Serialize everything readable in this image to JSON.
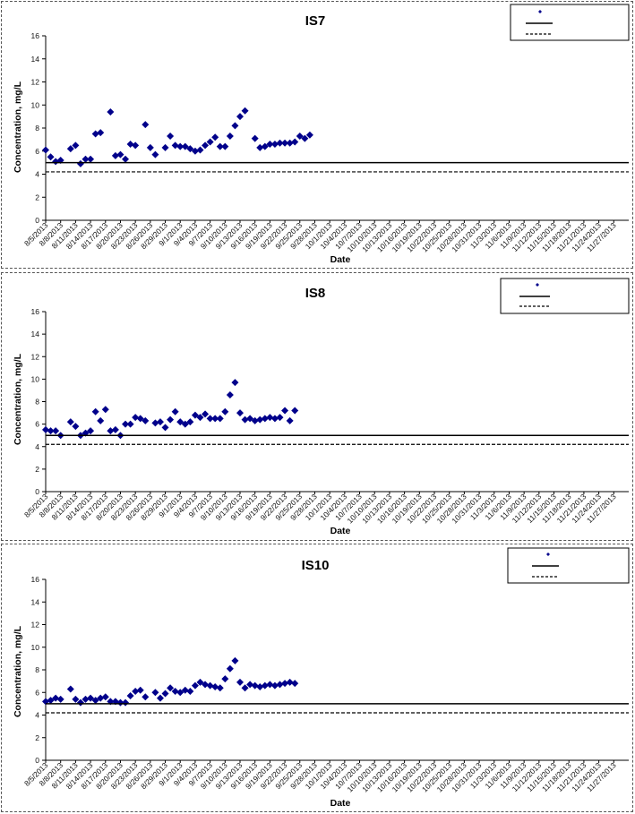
{
  "x_tick_labels": [
    "8/5/2013",
    "8/8/2013",
    "8/11/2013",
    "8/14/2013",
    "8/17/2013",
    "8/20/2013",
    "8/23/2013",
    "8/26/2013",
    "8/29/2013",
    "9/1/2013",
    "9/4/2013",
    "9/7/2013",
    "9/10/2013",
    "9/13/2013",
    "9/16/2013",
    "9/19/2013",
    "9/22/2013",
    "9/25/2013",
    "9/28/2013",
    "10/1/2013",
    "10/4/2013",
    "10/7/2013",
    "10/10/2013",
    "10/13/2013",
    "10/16/2013",
    "10/19/2013",
    "10/22/2013",
    "10/25/2013",
    "10/28/2013",
    "10/31/2013",
    "11/3/2013",
    "11/6/2013",
    "11/9/2013",
    "11/12/2013",
    "11/15/2013",
    "11/18/2013",
    "11/21/2013",
    "11/24/2013",
    "11/27/2013"
  ],
  "chart_data": [
    {
      "type": "scatter",
      "title": "IS7",
      "xlabel": "Date",
      "ylabel": "Concentration, mg/L",
      "ylim": [
        0,
        16
      ],
      "yticks": [
        0,
        2,
        4,
        6,
        8,
        10,
        12,
        14,
        16
      ],
      "grid": false,
      "legend_position": "top-right",
      "marker_color": "#00008B",
      "series": [
        {
          "points": [
            [
              "8/5/2013",
              6.1
            ],
            [
              "8/6/2013",
              5.5
            ],
            [
              "8/7/2013",
              5.1
            ],
            [
              "8/8/2013",
              5.2
            ],
            [
              "8/10/2013",
              6.2
            ],
            [
              "8/11/2013",
              6.5
            ],
            [
              "8/12/2013",
              4.9
            ],
            [
              "8/13/2013",
              5.3
            ],
            [
              "8/14/2013",
              5.3
            ],
            [
              "8/15/2013",
              7.5
            ],
            [
              "8/16/2013",
              7.6
            ],
            [
              "8/18/2013",
              9.4
            ],
            [
              "8/19/2013",
              5.6
            ],
            [
              "8/20/2013",
              5.7
            ],
            [
              "8/21/2013",
              5.3
            ],
            [
              "8/22/2013",
              6.6
            ],
            [
              "8/23/2013",
              6.5
            ],
            [
              "8/25/2013",
              8.3
            ],
            [
              "8/26/2013",
              6.3
            ],
            [
              "8/27/2013",
              5.7
            ],
            [
              "8/29/2013",
              6.3
            ],
            [
              "8/30/2013",
              7.3
            ],
            [
              "8/31/2013",
              6.5
            ],
            [
              "9/1/2013",
              6.4
            ],
            [
              "9/2/2013",
              6.4
            ],
            [
              "9/3/2013",
              6.2
            ],
            [
              "9/4/2013",
              6.0
            ],
            [
              "9/5/2013",
              6.1
            ],
            [
              "9/6/2013",
              6.5
            ],
            [
              "9/7/2013",
              6.8
            ],
            [
              "9/8/2013",
              7.2
            ],
            [
              "9/9/2013",
              6.4
            ],
            [
              "9/10/2013",
              6.4
            ],
            [
              "9/11/2013",
              7.3
            ],
            [
              "9/12/2013",
              8.2
            ],
            [
              "9/13/2013",
              9.0
            ],
            [
              "9/14/2013",
              9.5
            ],
            [
              "9/16/2013",
              7.1
            ],
            [
              "9/17/2013",
              6.3
            ],
            [
              "9/18/2013",
              6.4
            ],
            [
              "9/19/2013",
              6.6
            ],
            [
              "9/20/2013",
              6.6
            ],
            [
              "9/21/2013",
              6.7
            ],
            [
              "9/22/2013",
              6.7
            ],
            [
              "9/23/2013",
              6.7
            ],
            [
              "9/24/2013",
              6.8
            ],
            [
              "9/25/2013",
              7.3
            ],
            [
              "9/26/2013",
              7.1
            ],
            [
              "9/27/2013",
              7.4
            ]
          ]
        },
        {
          "type": "line",
          "y": 5.0,
          "style": "solid",
          "color": "#000000"
        },
        {
          "type": "line",
          "y": 4.2,
          "style": "dashed",
          "color": "#000000"
        }
      ]
    },
    {
      "type": "scatter",
      "title": "IS8",
      "xlabel": "Date",
      "ylabel": "Concentration, mg/L",
      "ylim": [
        0,
        16
      ],
      "yticks": [
        0,
        2,
        4,
        6,
        8,
        10,
        12,
        14,
        16
      ],
      "grid": false,
      "legend_position": "top-right",
      "marker_color": "#00008B",
      "series": [
        {
          "points": [
            [
              "8/5/2013",
              5.5
            ],
            [
              "8/6/2013",
              5.4
            ],
            [
              "8/7/2013",
              5.4
            ],
            [
              "8/8/2013",
              5.0
            ],
            [
              "8/10/2013",
              6.2
            ],
            [
              "8/11/2013",
              5.8
            ],
            [
              "8/12/2013",
              5.0
            ],
            [
              "8/13/2013",
              5.2
            ],
            [
              "8/14/2013",
              5.4
            ],
            [
              "8/15/2013",
              7.1
            ],
            [
              "8/16/2013",
              6.3
            ],
            [
              "8/17/2013",
              7.3
            ],
            [
              "8/18/2013",
              5.4
            ],
            [
              "8/19/2013",
              5.5
            ],
            [
              "8/20/2013",
              5.0
            ],
            [
              "8/21/2013",
              6.0
            ],
            [
              "8/22/2013",
              6.0
            ],
            [
              "8/23/2013",
              6.6
            ],
            [
              "8/24/2013",
              6.5
            ],
            [
              "8/25/2013",
              6.3
            ],
            [
              "8/27/2013",
              6.1
            ],
            [
              "8/28/2013",
              6.2
            ],
            [
              "8/29/2013",
              5.7
            ],
            [
              "8/30/2013",
              6.4
            ],
            [
              "8/31/2013",
              7.1
            ],
            [
              "9/1/2013",
              6.2
            ],
            [
              "9/2/2013",
              6.0
            ],
            [
              "9/3/2013",
              6.2
            ],
            [
              "9/4/2013",
              6.8
            ],
            [
              "9/5/2013",
              6.6
            ],
            [
              "9/6/2013",
              6.9
            ],
            [
              "9/7/2013",
              6.5
            ],
            [
              "9/8/2013",
              6.5
            ],
            [
              "9/9/2013",
              6.5
            ],
            [
              "9/10/2013",
              7.1
            ],
            [
              "9/11/2013",
              8.6
            ],
            [
              "9/12/2013",
              9.7
            ],
            [
              "9/13/2013",
              7.0
            ],
            [
              "9/14/2013",
              6.4
            ],
            [
              "9/15/2013",
              6.5
            ],
            [
              "9/16/2013",
              6.3
            ],
            [
              "9/17/2013",
              6.4
            ],
            [
              "9/18/2013",
              6.5
            ],
            [
              "9/19/2013",
              6.6
            ],
            [
              "9/20/2013",
              6.5
            ],
            [
              "9/21/2013",
              6.6
            ],
            [
              "9/22/2013",
              7.2
            ],
            [
              "9/23/2013",
              6.3
            ],
            [
              "9/24/2013",
              7.2
            ]
          ]
        },
        {
          "type": "line",
          "y": 5.0,
          "style": "solid",
          "color": "#000000"
        },
        {
          "type": "line",
          "y": 4.2,
          "style": "dashed",
          "color": "#000000"
        }
      ]
    },
    {
      "type": "scatter",
      "title": "IS10",
      "xlabel": "Date",
      "ylabel": "Concentration, mg/L",
      "ylim": [
        0,
        16
      ],
      "yticks": [
        0,
        2,
        4,
        6,
        8,
        10,
        12,
        14,
        16
      ],
      "grid": false,
      "legend_position": "top-right",
      "marker_color": "#00008B",
      "series": [
        {
          "points": [
            [
              "8/5/2013",
              5.2
            ],
            [
              "8/6/2013",
              5.3
            ],
            [
              "8/7/2013",
              5.5
            ],
            [
              "8/8/2013",
              5.4
            ],
            [
              "8/10/2013",
              6.3
            ],
            [
              "8/11/2013",
              5.4
            ],
            [
              "8/12/2013",
              5.1
            ],
            [
              "8/13/2013",
              5.4
            ],
            [
              "8/14/2013",
              5.5
            ],
            [
              "8/15/2013",
              5.3
            ],
            [
              "8/16/2013",
              5.5
            ],
            [
              "8/17/2013",
              5.6
            ],
            [
              "8/18/2013",
              5.2
            ],
            [
              "8/19/2013",
              5.2
            ],
            [
              "8/20/2013",
              5.1
            ],
            [
              "8/21/2013",
              5.1
            ],
            [
              "8/22/2013",
              5.7
            ],
            [
              "8/23/2013",
              6.1
            ],
            [
              "8/24/2013",
              6.2
            ],
            [
              "8/25/2013",
              5.6
            ],
            [
              "8/27/2013",
              6.0
            ],
            [
              "8/28/2013",
              5.5
            ],
            [
              "8/29/2013",
              5.9
            ],
            [
              "8/30/2013",
              6.4
            ],
            [
              "8/31/2013",
              6.1
            ],
            [
              "9/1/2013",
              6.0
            ],
            [
              "9/2/2013",
              6.2
            ],
            [
              "9/3/2013",
              6.1
            ],
            [
              "9/4/2013",
              6.6
            ],
            [
              "9/5/2013",
              6.9
            ],
            [
              "9/6/2013",
              6.7
            ],
            [
              "9/7/2013",
              6.6
            ],
            [
              "9/8/2013",
              6.5
            ],
            [
              "9/9/2013",
              6.4
            ],
            [
              "9/10/2013",
              7.2
            ],
            [
              "9/11/2013",
              8.1
            ],
            [
              "9/12/2013",
              8.8
            ],
            [
              "9/13/2013",
              6.9
            ],
            [
              "9/14/2013",
              6.4
            ],
            [
              "9/15/2013",
              6.7
            ],
            [
              "9/16/2013",
              6.6
            ],
            [
              "9/17/2013",
              6.5
            ],
            [
              "9/18/2013",
              6.6
            ],
            [
              "9/19/2013",
              6.7
            ],
            [
              "9/20/2013",
              6.6
            ],
            [
              "9/21/2013",
              6.7
            ],
            [
              "9/22/2013",
              6.8
            ],
            [
              "9/23/2013",
              6.9
            ],
            [
              "9/24/2013",
              6.8
            ]
          ]
        },
        {
          "type": "line",
          "y": 5.0,
          "style": "solid",
          "color": "#000000"
        },
        {
          "type": "line",
          "y": 4.2,
          "style": "dashed",
          "color": "#000000"
        }
      ]
    }
  ]
}
